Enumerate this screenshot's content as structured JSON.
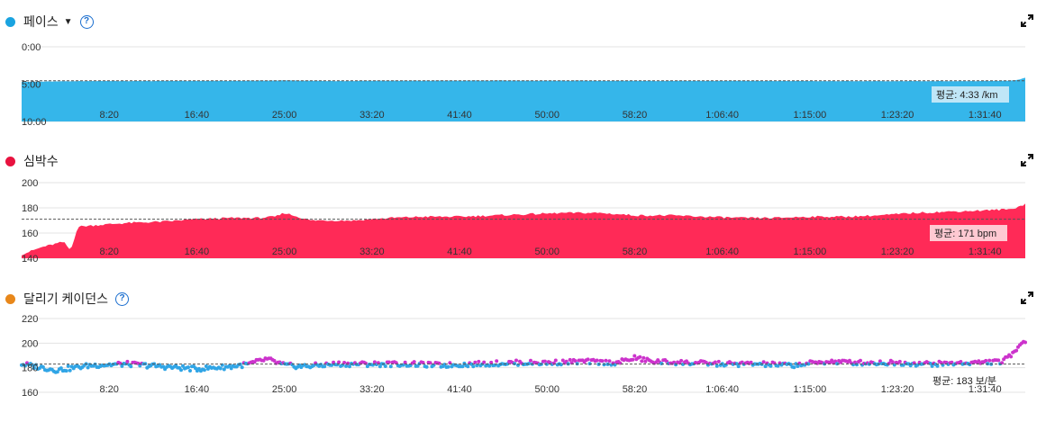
{
  "chart_data": [
    {
      "type": "area",
      "id": "pace",
      "title": "페이스",
      "dropdown": "▼",
      "help_icon": "?",
      "color": "#35b6ea",
      "dot_color": "#1aa3e0",
      "y_tick_labels": [
        "0:00",
        "5:00",
        "10:00"
      ],
      "y_ticks_seconds": [
        0,
        300,
        600
      ],
      "ylim_seconds": [
        0,
        600
      ],
      "y_inverted": true,
      "x_tick_labels": [
        "8:20",
        "16:40",
        "25:00",
        "33:20",
        "41:40",
        "50:00",
        "58:20",
        "1:06:40",
        "1:15:00",
        "1:23:20",
        "1:31:40"
      ],
      "x_ticks_seconds": [
        500,
        1000,
        1500,
        2000,
        2500,
        3000,
        3500,
        4000,
        4500,
        5000,
        5500
      ],
      "xlim_seconds": [
        0,
        5730
      ],
      "series": [
        {
          "x_seconds": [
            0,
            300,
            600,
            900,
            1200,
            1500,
            1800,
            2100,
            2400,
            2700,
            3000,
            3300,
            3600,
            3900,
            4200,
            4500,
            4800,
            5100,
            5400,
            5650,
            5700,
            5730
          ],
          "pace_seconds_per_km": [
            282,
            276,
            275,
            274,
            274,
            270,
            275,
            273,
            272,
            271,
            272,
            273,
            274,
            274,
            274,
            275,
            276,
            276,
            276,
            272,
            262,
            248
          ]
        }
      ],
      "average_label": "평균: 4:33 /km",
      "average_seconds": 273
    },
    {
      "type": "area",
      "id": "heart_rate",
      "title": "심박수",
      "color": "#ff2a57",
      "dot_color": "#e8123f",
      "y_tick_labels": [
        "200",
        "180",
        "160",
        "140"
      ],
      "y_ticks": [
        200,
        180,
        160,
        140
      ],
      "ylim": [
        140,
        200
      ],
      "x_tick_labels": [
        "8:20",
        "16:40",
        "25:00",
        "33:20",
        "41:40",
        "50:00",
        "58:20",
        "1:06:40",
        "1:15:00",
        "1:23:20",
        "1:31:40"
      ],
      "x_ticks_seconds": [
        500,
        1000,
        1500,
        2000,
        2500,
        3000,
        3500,
        4000,
        4500,
        5000,
        5500
      ],
      "xlim_seconds": [
        0,
        5730
      ],
      "series": [
        {
          "x_seconds": [
            0,
            60,
            120,
            180,
            240,
            280,
            320,
            400,
            600,
            800,
            1000,
            1200,
            1350,
            1450,
            1500,
            1550,
            1650,
            1800,
            1900,
            2100,
            2300,
            2500,
            2700,
            2900,
            3100,
            3300,
            3500,
            3700,
            3900,
            4100,
            4300,
            4500,
            4700,
            4900,
            5100,
            5300,
            5500,
            5650,
            5730
          ],
          "bpm": [
            143,
            146,
            149,
            151,
            153,
            146,
            165,
            166,
            168,
            169,
            171,
            172,
            172,
            173,
            176,
            174,
            170,
            170,
            170,
            172,
            173,
            173,
            174,
            175,
            176,
            176,
            174,
            174,
            173,
            172,
            172,
            173,
            173,
            174,
            176,
            177,
            178,
            179,
            183
          ]
        }
      ],
      "average_label": "평균: 171 bpm",
      "average_value": 171
    },
    {
      "type": "scatter",
      "id": "cadence",
      "title": "달리기 케이던스",
      "help_icon": "?",
      "dot_color": "#e8871a",
      "colors": {
        "high": "#cc33cc",
        "low": "#30a5e6"
      },
      "y_tick_labels": [
        "220",
        "200",
        "180",
        "160"
      ],
      "y_ticks": [
        220,
        200,
        180,
        160
      ],
      "ylim": [
        160,
        220
      ],
      "x_tick_labels": [
        "8:20",
        "16:40",
        "25:00",
        "33:20",
        "41:40",
        "50:00",
        "58:20",
        "1:06:40",
        "1:15:00",
        "1:23:20",
        "1:31:40"
      ],
      "x_ticks_seconds": [
        500,
        1000,
        1500,
        2000,
        2500,
        3000,
        3500,
        4000,
        4500,
        5000,
        5500
      ],
      "xlim_seconds": [
        0,
        5730
      ],
      "series": [
        {
          "x_seconds": [
            0,
            200,
            400,
            600,
            800,
            1000,
            1200,
            1300,
            1400,
            1500,
            1600,
            1800,
            2000,
            2200,
            2400,
            2600,
            2800,
            3000,
            3200,
            3400,
            3500,
            3600,
            3800,
            4000,
            4200,
            4400,
            4600,
            4800,
            5000,
            5200,
            5400,
            5600,
            5650,
            5700,
            5730
          ],
          "spm": [
            183,
            178,
            182,
            183,
            181,
            179,
            181,
            183,
            187,
            182,
            181,
            183,
            183,
            183,
            182,
            183,
            184,
            184,
            185,
            184,
            188,
            185,
            184,
            183,
            183,
            182,
            185,
            184,
            184,
            183,
            184,
            185,
            190,
            200,
            202
          ]
        }
      ],
      "average_label": "평균: 183 보/분",
      "average_value": 183
    }
  ]
}
